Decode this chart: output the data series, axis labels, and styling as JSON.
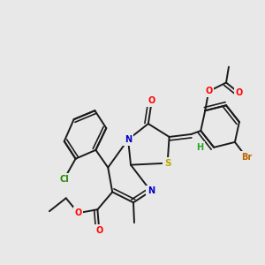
{
  "bg_color": "#e8e8e8",
  "bond_color": "#1a1a1a",
  "bond_lw": 1.4,
  "atom_colors": {
    "O": "#ff0000",
    "N": "#0000cc",
    "S": "#bbaa00",
    "Cl": "#228800",
    "Br": "#bb6600",
    "H": "#22aa22",
    "C": "#1a1a1a"
  },
  "font_size": 7.0,
  "fig_size": [
    3.0,
    3.0
  ],
  "dpi": 100
}
